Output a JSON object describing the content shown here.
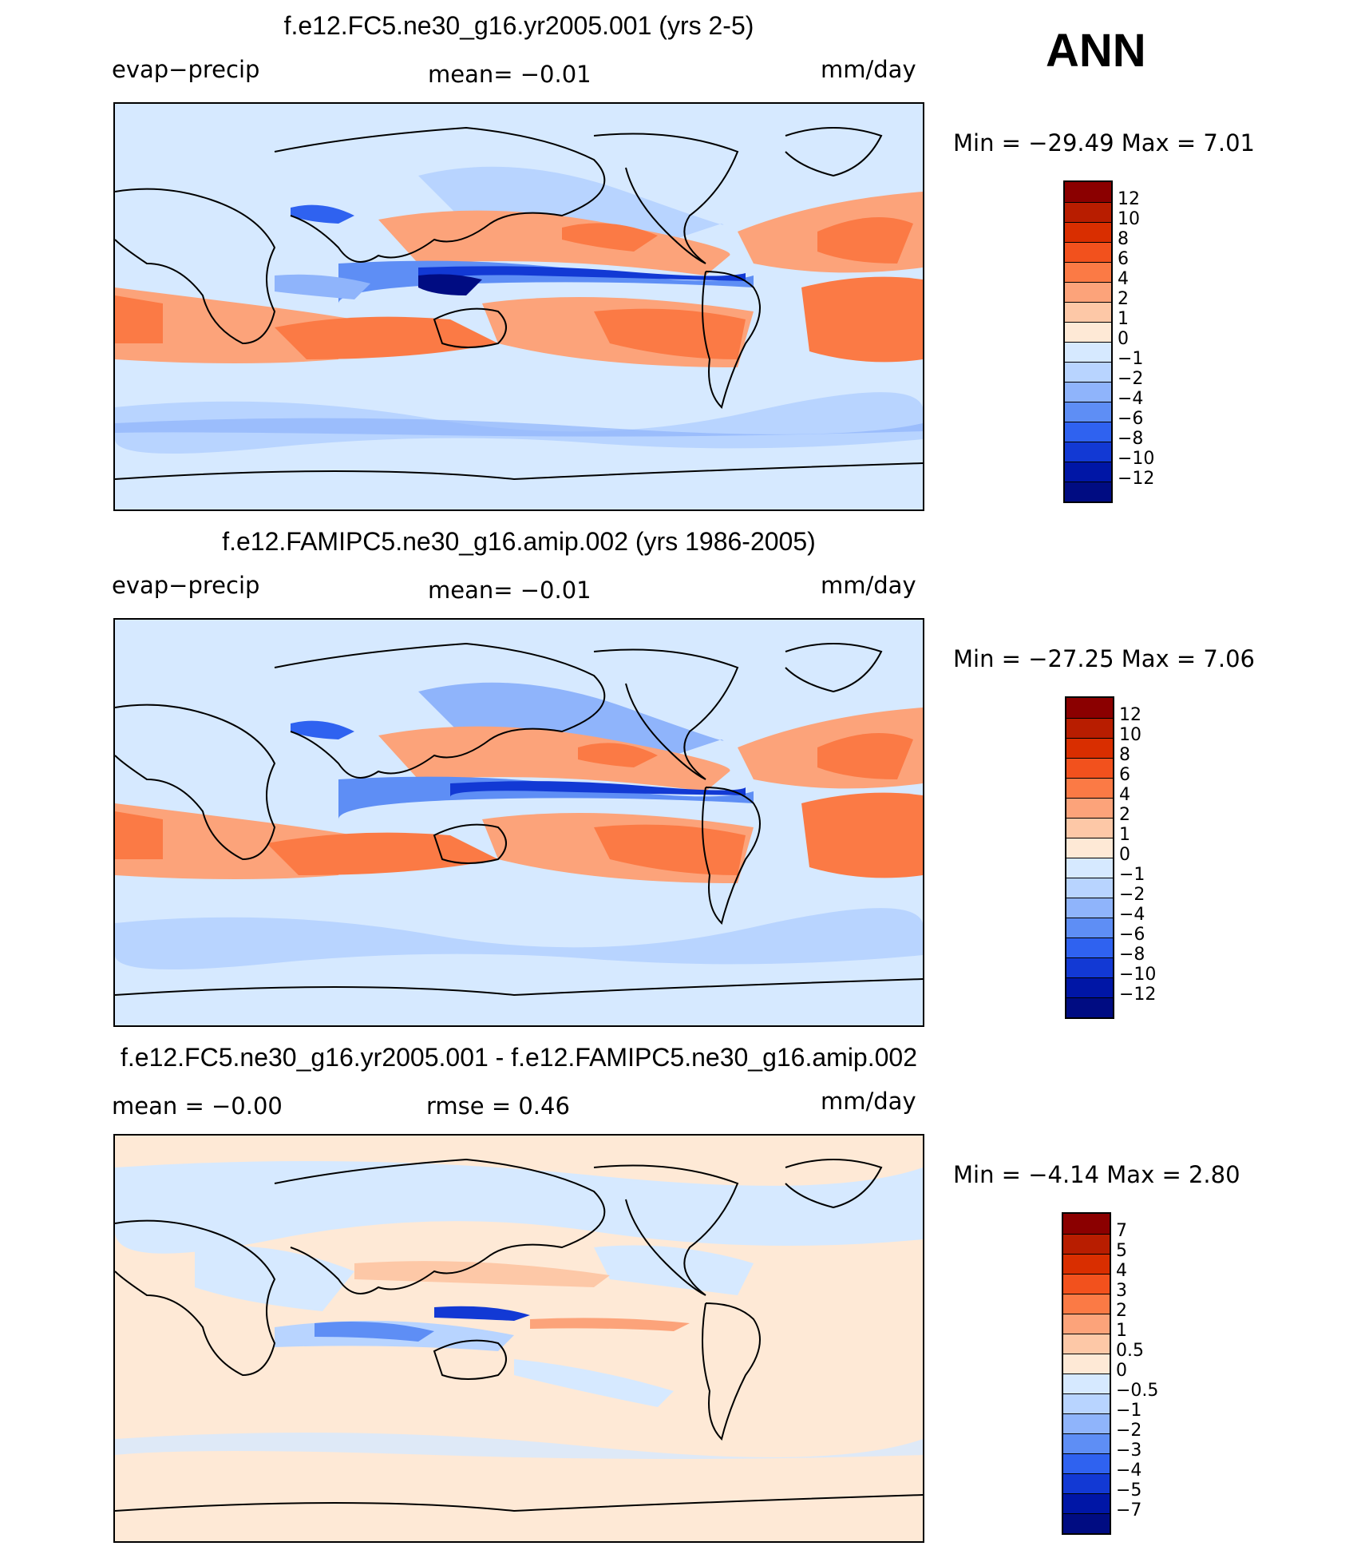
{
  "season": "ANN",
  "panels": [
    {
      "title": "f.e12.FC5.ne30_g16.yr2005.001 (yrs 2-5)",
      "left_label": "evap−precip",
      "center_label": "mean=   −0.01",
      "right_label": "mm/day",
      "minmax": "Min  =  −29.49  Max  =     7.01",
      "colorbar_ticks": [
        "12",
        "10",
        "8",
        "6",
        "4",
        "2",
        "1",
        "0",
        "−1",
        "−2",
        "−4",
        "−6",
        "−8",
        "−10",
        "−12"
      ]
    },
    {
      "title": "f.e12.FAMIPC5.ne30_g16.amip.002 (yrs 1986-2005)",
      "left_label": "evap−precip",
      "center_label": "mean=   −0.01",
      "right_label": "mm/day",
      "minmax": "Min  =  −27.25  Max  =     7.06",
      "colorbar_ticks": [
        "12",
        "10",
        "8",
        "6",
        "4",
        "2",
        "1",
        "0",
        "−1",
        "−2",
        "−4",
        "−6",
        "−8",
        "−10",
        "−12"
      ]
    },
    {
      "title": "f.e12.FC5.ne30_g16.yr2005.001 - f.e12.FAMIPC5.ne30_g16.amip.002",
      "left_label": "mean  =    −0.00",
      "center_label": "rmse  =     0.46",
      "right_label": "mm/day",
      "minmax": "Min  =     −4.14  Max  =     2.80",
      "colorbar_ticks": [
        "7",
        "5",
        "4",
        "3",
        "2",
        "1",
        "0.5",
        "0",
        "−0.5",
        "−1",
        "−2",
        "−3",
        "−4",
        "−5",
        "−7"
      ]
    }
  ],
  "colors": {
    "scale": [
      "#8b0000",
      "#b81d00",
      "#d92e00",
      "#f2511d",
      "#fb7a45",
      "#fca37a",
      "#fdc8a7",
      "#fee9d6",
      "#d6e9ff",
      "#b8d4ff",
      "#8fb4fb",
      "#5e8ef5",
      "#2f62f0",
      "#1239d4",
      "#0016a6",
      "#000c82"
    ]
  }
}
